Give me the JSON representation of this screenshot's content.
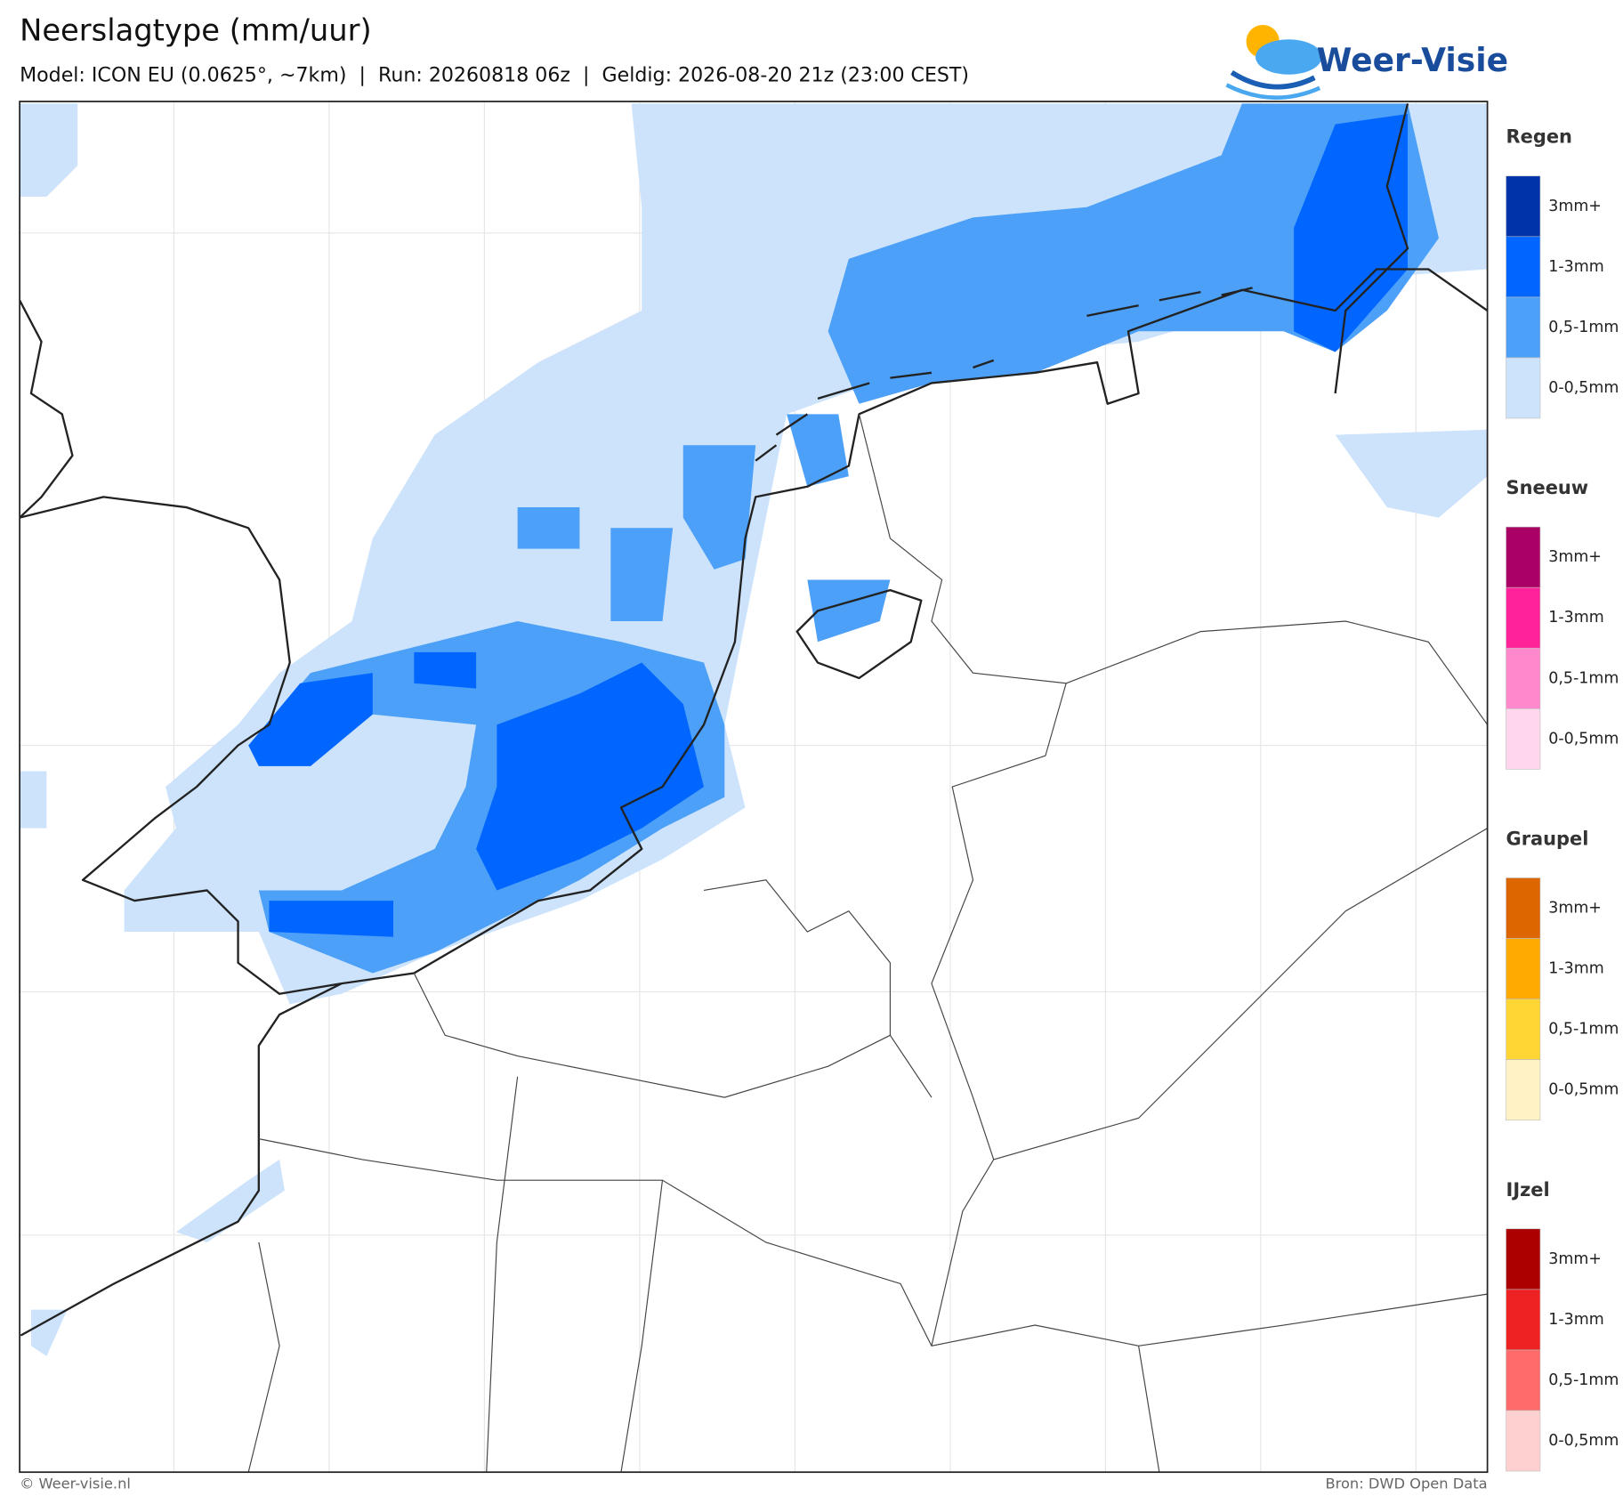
{
  "header": {
    "title": "Neerslagtype (mm/uur)",
    "subtitle": "Model: ICON EU (0.0625°, ~7km)  |  Run: 20260818 06z  |  Geldig: 2026-08-20 21z (23:00 CEST)",
    "logo": "Weer-Visie"
  },
  "legend": {
    "groups": [
      {
        "title": "Regen",
        "labels": [
          "3mm+",
          "1-3mm",
          "0,5-1mm",
          "0-0,5mm"
        ],
        "colors": [
          "#0033aa",
          "#0066ff",
          "#4da0f7",
          "#cce3fb"
        ]
      },
      {
        "title": "Sneeuw",
        "labels": [
          "3mm+",
          "1-3mm",
          "0,5-1mm",
          "0-0,5mm"
        ],
        "colors": [
          "#aa0066",
          "#ff2299",
          "#ff88cc",
          "#ffd6ec"
        ]
      },
      {
        "title": "Graupel",
        "labels": [
          "3mm+",
          "1-3mm",
          "0,5-1mm",
          "0-0,5mm"
        ],
        "colors": [
          "#dd6600",
          "#ffaa00",
          "#ffd633",
          "#fff2c4"
        ]
      },
      {
        "title": "IJzel",
        "labels": [
          "3mm+",
          "1-3mm",
          "0,5-1mm",
          "0-0,5mm"
        ],
        "colors": [
          "#aa0000",
          "#ee2222",
          "#ff6b6b",
          "#ffd0d0"
        ]
      }
    ]
  },
  "footer": {
    "copyright": "© Weer-visie.nl",
    "source": "Bron: DWD Open Data"
  }
}
